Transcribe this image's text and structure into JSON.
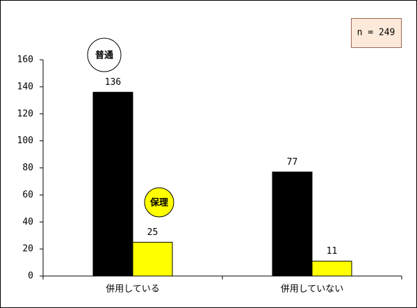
{
  "chart_data": {
    "type": "bar",
    "categories": [
      "併用している",
      "併用していない"
    ],
    "series": [
      {
        "name": "普通",
        "color": "#000000",
        "values": [
          136,
          77
        ]
      },
      {
        "name": "保理",
        "color": "#ffff00",
        "values": [
          25,
          11
        ]
      }
    ],
    "ylim": [
      0,
      160
    ],
    "yticks": [
      0,
      20,
      40,
      60,
      80,
      100,
      120,
      140,
      160
    ],
    "annotation": "n = 249",
    "grid": false
  }
}
